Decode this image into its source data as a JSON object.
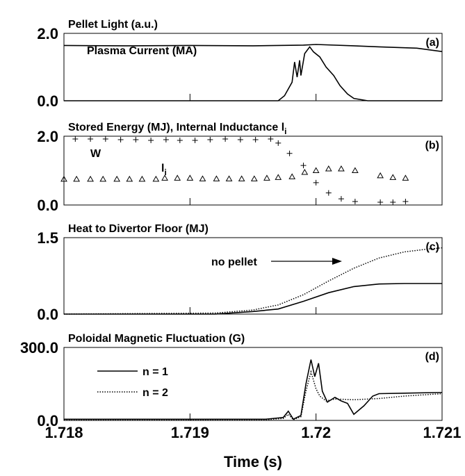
{
  "chart_data": [
    {
      "type": "line",
      "title": "Pellet Light (a.u.)",
      "label": "(a)",
      "annotations": [
        "Plasma Current (MA)"
      ],
      "xlim": [
        1.718,
        1.721
      ],
      "ylim": [
        0,
        2
      ],
      "yticks": [
        {
          "value": 0,
          "label": "0.0"
        },
        {
          "value": 2,
          "label": "2.0"
        }
      ],
      "series": [
        {
          "style": "solid",
          "color": "#000000",
          "x": [
            1.718,
            1.7185,
            1.719,
            1.7195,
            1.7199,
            1.72,
            1.7203,
            1.7205,
            1.7208,
            1.721
          ],
          "values": [
            1.64,
            1.63,
            1.64,
            1.63,
            1.65,
            1.67,
            1.63,
            1.6,
            1.56,
            1.46
          ]
        },
        {
          "style": "solid",
          "color": "#000000",
          "x": [
            1.718,
            1.7197,
            1.71975,
            1.71981,
            1.71983,
            1.71985,
            1.71987,
            1.71988,
            1.71991,
            1.71995,
            1.71998,
            1.72003,
            1.72008,
            1.72014,
            1.72019,
            1.72025,
            1.7203,
            1.72041,
            1.721
          ],
          "values": [
            0,
            0,
            0.15,
            0.55,
            1.15,
            0.7,
            1.2,
            0.75,
            1.4,
            1.6,
            1.45,
            1.3,
            1.0,
            0.75,
            0.45,
            0.2,
            0.07,
            0,
            0
          ]
        }
      ]
    },
    {
      "type": "scatter",
      "title": "Stored Energy (MJ), Internal Inductance l",
      "title_subscript": "i",
      "label": "(b)",
      "annotations": [
        "W",
        "l"
      ],
      "annotation_subscript": "i",
      "xlim": [
        1.718,
        1.721
      ],
      "ylim": [
        0,
        2
      ],
      "yticks": [
        {
          "value": 0,
          "label": "0.0"
        },
        {
          "value": 2,
          "label": "2.0"
        }
      ],
      "series": [
        {
          "marker": "plus",
          "color": "#000000",
          "x": [
            1.71809,
            1.71821,
            1.71833,
            1.71845,
            1.71857,
            1.71869,
            1.71881,
            1.71892,
            1.71904,
            1.71916,
            1.71928,
            1.7194,
            1.71952,
            1.71964,
            1.7197,
            1.71979,
            1.7199,
            1.72,
            1.7201,
            1.7202,
            1.72031,
            1.72051,
            1.72061,
            1.72071
          ],
          "values": [
            1.92,
            1.92,
            1.92,
            1.9,
            1.9,
            1.88,
            1.9,
            1.88,
            1.88,
            1.9,
            1.92,
            1.9,
            1.9,
            1.92,
            1.8,
            1.5,
            1.15,
            0.65,
            0.35,
            0.18,
            0.1,
            0.08,
            0.08,
            0.1
          ]
        },
        {
          "marker": "triangle",
          "color": "#000000",
          "x": [
            1.718,
            1.7181,
            1.71821,
            1.71831,
            1.71842,
            1.71852,
            1.71862,
            1.71873,
            1.7188,
            1.7189,
            1.719,
            1.7191,
            1.71921,
            1.71931,
            1.71941,
            1.71951,
            1.71961,
            1.7197,
            1.71981,
            1.71991,
            1.72,
            1.7201,
            1.7202,
            1.72031,
            1.72051,
            1.72061,
            1.72071
          ],
          "values": [
            0.75,
            0.75,
            0.75,
            0.75,
            0.75,
            0.75,
            0.75,
            0.75,
            0.78,
            0.78,
            0.78,
            0.76,
            0.76,
            0.76,
            0.76,
            0.76,
            0.78,
            0.8,
            0.82,
            0.95,
            1.0,
            1.05,
            1.05,
            1.0,
            0.85,
            0.8,
            0.78
          ]
        }
      ]
    },
    {
      "type": "line",
      "title": "Heat to Divertor Floor (MJ)",
      "label": "(c)",
      "annotations": [
        "no pellet"
      ],
      "xlim": [
        1.718,
        1.721
      ],
      "ylim": [
        0,
        1.5
      ],
      "yticks": [
        {
          "value": 0,
          "label": "0.0"
        },
        1.5
      ],
      "series": [
        {
          "style": "solid",
          "color": "#000000",
          "x": [
            1.718,
            1.7192,
            1.7195,
            1.7197,
            1.7199,
            1.7201,
            1.7203,
            1.7205,
            1.7207,
            1.721
          ],
          "values": [
            0,
            0,
            0.05,
            0.1,
            0.25,
            0.42,
            0.54,
            0.59,
            0.6,
            0.6
          ]
        },
        {
          "style": "dotted",
          "color": "#000000",
          "x": [
            1.718,
            1.7192,
            1.7195,
            1.7197,
            1.7199,
            1.7201,
            1.7203,
            1.7205,
            1.7207,
            1.7209,
            1.721
          ],
          "values": [
            0,
            0.02,
            0.08,
            0.18,
            0.38,
            0.65,
            0.9,
            1.1,
            1.22,
            1.28,
            1.3
          ]
        }
      ]
    },
    {
      "type": "line",
      "title": "Poloidal Magnetic Fluctuation (G)",
      "label": "(d)",
      "xlabel": "Time (s)",
      "xlim": [
        1.718,
        1.721
      ],
      "xticks": [
        1.718,
        1.719,
        1.72,
        1.721
      ],
      "ylim": [
        0,
        300
      ],
      "yticks": [
        {
          "value": 0,
          "label": "0.0"
        },
        {
          "value": 300,
          "label": "300.0"
        }
      ],
      "series": [
        {
          "name": "n = 1",
          "style": "solid",
          "color": "#000000",
          "x": [
            1.718,
            1.7196,
            1.71974,
            1.71978,
            1.71982,
            1.71988,
            1.71992,
            1.71996,
            1.71999,
            1.72002,
            1.72005,
            1.72009,
            1.72015,
            1.7202,
            1.72025,
            1.7203,
            1.72038,
            1.72045,
            1.7205,
            1.7207,
            1.721
          ],
          "values": [
            5,
            5,
            12,
            38,
            5,
            20,
            150,
            250,
            180,
            235,
            120,
            75,
            95,
            80,
            70,
            25,
            60,
            100,
            110,
            112,
            115
          ]
        },
        {
          "name": "n = 2",
          "style": "dotted",
          "color": "#000000",
          "x": [
            1.718,
            1.7196,
            1.71974,
            1.71978,
            1.71982,
            1.71988,
            1.71992,
            1.71996,
            1.72,
            1.72003,
            1.72008,
            1.72015,
            1.7203,
            1.7205,
            1.7207,
            1.721
          ],
          "values": [
            3,
            3,
            8,
            25,
            3,
            15,
            120,
            200,
            130,
            100,
            80,
            88,
            85,
            90,
            100,
            110
          ]
        }
      ]
    }
  ]
}
